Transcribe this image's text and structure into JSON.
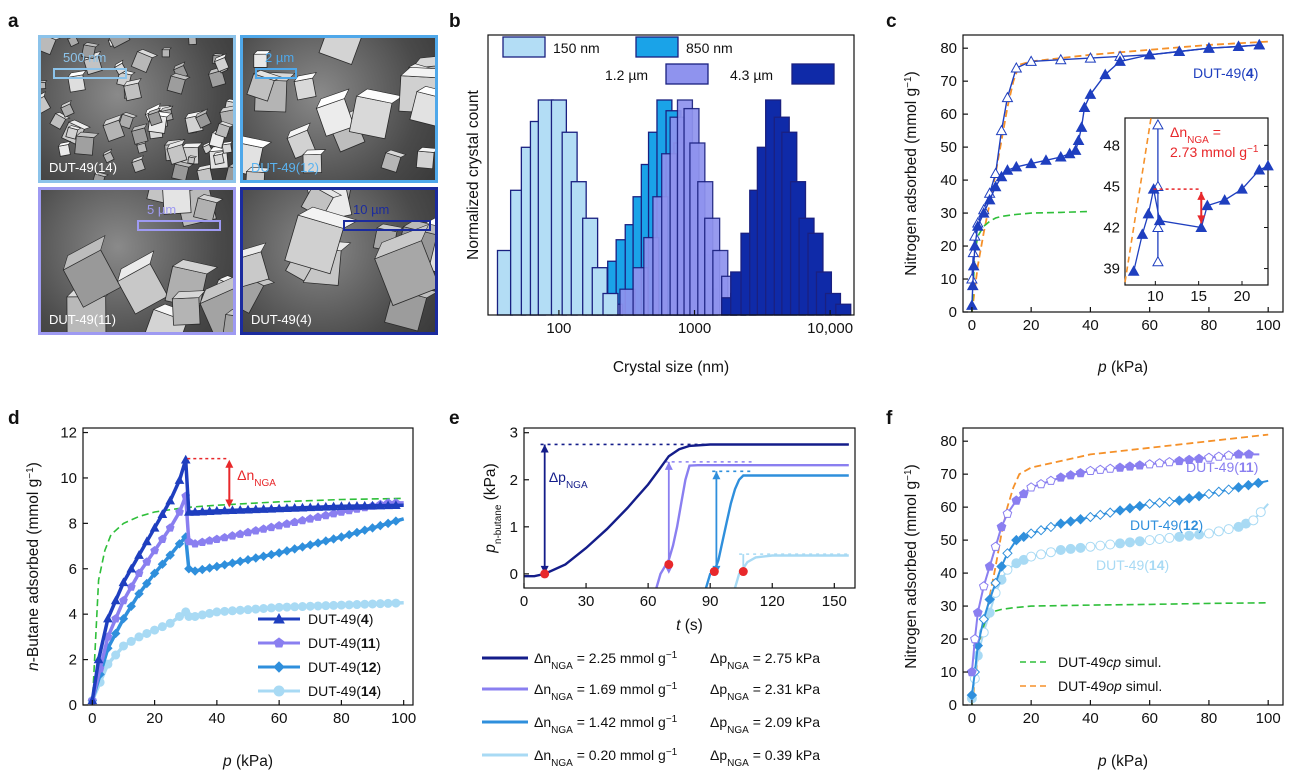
{
  "panel_labels": [
    "a",
    "b",
    "c",
    "d",
    "e",
    "f"
  ],
  "colors": {
    "s150": "#b3ddf5",
    "s850": "#1aa3e8",
    "s1200": "#8f93ee",
    "s4300": "#0f2aa8",
    "navy": "#141d8a",
    "dut4": "#1f3fbf",
    "dut11": "#8a7ff0",
    "dut12": "#2f8fdc",
    "dut14": "#a8daf4",
    "red": "#e8282b",
    "green": "#2fbf3a",
    "orange": "#f5912a",
    "edge": "#1a2080"
  },
  "panel_a": {
    "images": [
      {
        "caption": "DUT-49(14)",
        "scale": "500 nm",
        "border": "#8cc3ea",
        "capcolor": "#ffffff"
      },
      {
        "caption": "DUT-49(12)",
        "scale": "2 µm",
        "border": "#4fa8ea",
        "capcolor": "#5ab3f0"
      },
      {
        "caption": "DUT-49(11)",
        "scale": "5 µm",
        "border": "#9e9af2",
        "capcolor": "#ffffff"
      },
      {
        "caption": "DUT-49(4)",
        "scale": "10 µm",
        "border": "#1b2b9e",
        "capcolor": "#ffffff"
      }
    ]
  },
  "panel_b": {
    "ylabel": "Normalized crystal count",
    "xlabel": "Crystal size (nm)",
    "xticks": [
      "100",
      "1000",
      "10,000"
    ],
    "legend": [
      "150 nm",
      "850 nm",
      "1.2 µm",
      "4.3 µm"
    ]
  },
  "panel_c": {
    "ylabel": "Nitrogen adsorbed (mmol g",
    "ylabel_sup": "−1",
    "xlabel_var": "p",
    "xlabel_unit": " (kPa)",
    "series_label": "DUT-49(4)",
    "inset_label": "Δn",
    "inset_sub": "NGA",
    "inset_value": "2.73 mmol g",
    "inset_value_sup": "−1",
    "xticks": [
      "0",
      "20",
      "40",
      "60",
      "80",
      "100"
    ],
    "yticks": [
      "0",
      "10",
      "20",
      "30",
      "40",
      "50",
      "60",
      "70",
      "80"
    ],
    "inset_xticks": [
      "10",
      "15",
      "20"
    ],
    "inset_yticks": [
      "39",
      "42",
      "45",
      "48"
    ]
  },
  "panel_d": {
    "ylabel": "n-Butane adsorbed (mmol g",
    "ylabel_sup": "−1",
    "xlabel_var": "p",
    "xlabel_unit": " (kPa)",
    "delta_label": "Δn",
    "delta_sub": "NGA",
    "xticks": [
      "0",
      "20",
      "40",
      "60",
      "80",
      "100"
    ],
    "yticks": [
      "0",
      "2",
      "4",
      "6",
      "8",
      "10",
      "12"
    ],
    "legend": [
      "DUT-49(4)",
      "DUT-49(11)",
      "DUT-49(12)",
      "DUT-49(14)"
    ]
  },
  "panel_e": {
    "ylabel_var": "p",
    "ylabel_sub": "n-butane",
    "ylabel_unit": " (kPa)",
    "xlabel_var": "t",
    "xlabel_unit": " (s)",
    "delta_label": "Δp",
    "delta_sub": "NGA",
    "xticks": [
      "0",
      "30",
      "60",
      "90",
      "120",
      "150"
    ],
    "yticks": [
      "0",
      "1",
      "2",
      "3"
    ],
    "legend": [
      {
        "dn": "= 2.25 mmol g",
        "dp": "= 2.75 kPa"
      },
      {
        "dn": "= 1.69 mmol g",
        "dp": "= 2.31 kPa"
      },
      {
        "dn": "= 1.42 mmol g",
        "dp": "= 2.09 kPa"
      },
      {
        "dn": "= 0.20 mmol g",
        "dp": "= 0.39 kPa"
      }
    ],
    "legend_dn": "Δn",
    "legend_dp": "Δp",
    "legend_sub": "NGA",
    "legend_sup": "−1"
  },
  "panel_f": {
    "ylabel": "Nitrogen adsorbed (mmol g",
    "ylabel_sup": "−1",
    "xlabel_var": "p",
    "xlabel_unit": " (kPa)",
    "labels": [
      "DUT-49(11)",
      "DUT-49(12)",
      "DUT-49(14)"
    ],
    "legend": [
      "DUT-49cp simul.",
      "DUT-49op simul."
    ],
    "xticks": [
      "0",
      "20",
      "40",
      "60",
      "80",
      "100"
    ],
    "yticks": [
      "0",
      "10",
      "20",
      "30",
      "40",
      "50",
      "60",
      "70",
      "80"
    ]
  },
  "chart_data": [
    {
      "type": "bar",
      "panel": "b",
      "xlabel": "Crystal size (nm)",
      "ylabel": "Normalized crystal count",
      "xscale": "log",
      "series": [
        {
          "name": "150 nm",
          "x": [
            40,
            50,
            60,
            70,
            80,
            100,
            120,
            140,
            170,
            200,
            240
          ],
          "values": [
            0.3,
            0.58,
            0.78,
            0.9,
            1.0,
            1.0,
            0.85,
            0.62,
            0.45,
            0.22,
            0.1
          ]
        },
        {
          "name": "850 nm",
          "x": [
            180,
            220,
            260,
            300,
            350,
            400,
            460,
            520,
            600,
            700,
            800,
            900,
            1000,
            1150,
            1300
          ],
          "values": [
            0.08,
            0.15,
            0.25,
            0.35,
            0.42,
            0.55,
            0.7,
            0.85,
            1.0,
            0.95,
            0.8,
            0.6,
            0.45,
            0.28,
            0.12
          ]
        },
        {
          "name": "1.2 µm",
          "x": [
            260,
            320,
            400,
            480,
            560,
            650,
            750,
            850,
            950,
            1050,
            1200,
            1350,
            1550,
            1800,
            2100,
            2500
          ],
          "values": [
            0.05,
            0.12,
            0.22,
            0.36,
            0.55,
            0.75,
            0.92,
            1.0,
            0.96,
            0.8,
            0.62,
            0.45,
            0.3,
            0.18,
            0.1,
            0.05
          ]
        },
        {
          "name": "4.3 µm",
          "x": [
            1800,
            2100,
            2500,
            2900,
            3300,
            3800,
            4400,
            5000,
            5800,
            6700,
            7800,
            9000,
            10500,
            12500
          ],
          "values": [
            0.08,
            0.2,
            0.38,
            0.58,
            0.78,
            1.0,
            0.92,
            0.85,
            0.62,
            0.45,
            0.38,
            0.2,
            0.1,
            0.05
          ]
        }
      ]
    },
    {
      "type": "line",
      "panel": "c",
      "xlabel": "p (kPa)",
      "ylabel": "Nitrogen adsorbed (mmol g−1)",
      "xlim": [
        -3,
        105
      ],
      "ylim": [
        0,
        84
      ],
      "series": [
        {
          "name": "DUT-49(4)",
          "x": [
            0,
            0.3,
            0.6,
            1,
            2,
            4,
            6,
            8,
            10,
            12,
            15,
            20,
            25,
            30,
            33,
            35,
            36,
            37,
            38,
            40,
            45,
            50,
            60,
            70,
            80,
            90,
            97
          ],
          "y": [
            2,
            8,
            14,
            20,
            26,
            30,
            34,
            38,
            41,
            43,
            44,
            45,
            46,
            47,
            48,
            49,
            52,
            56,
            62,
            66,
            72,
            76,
            78,
            79,
            80,
            80.5,
            81
          ]
        },
        {
          "name": "DUT-49(4) desorption",
          "x": [
            97,
            90,
            80,
            70,
            60,
            50,
            40,
            30,
            20,
            15,
            12,
            10,
            8,
            6,
            4,
            2,
            1,
            0.5,
            0
          ],
          "y": [
            81,
            80.5,
            80,
            79,
            78,
            77.5,
            77,
            76.5,
            76,
            74,
            65,
            55,
            42,
            36,
            31,
            27,
            23,
            18,
            10
          ]
        },
        {
          "name": "DUT-49cp simul.",
          "x": [
            0,
            1,
            2,
            4,
            6,
            8,
            10,
            14,
            20,
            30,
            40
          ],
          "y": [
            0,
            18,
            23,
            26,
            27.5,
            28.5,
            29,
            29.5,
            30,
            30.2,
            30.5
          ]
        },
        {
          "name": "DUT-49op simul.",
          "x": [
            0,
            2,
            4,
            6,
            8,
            10,
            12,
            14,
            16,
            20,
            30,
            40,
            60,
            80,
            100
          ],
          "y": [
            0,
            14,
            24,
            33,
            42,
            52,
            62,
            70,
            75,
            76,
            77,
            78,
            79.5,
            81,
            82
          ]
        }
      ]
    },
    {
      "type": "line",
      "panel": "d",
      "xlabel": "p (kPa)",
      "ylabel": "n-Butane adsorbed (mmol g−1)",
      "xlim": [
        -3,
        103
      ],
      "ylim": [
        0,
        12.2
      ],
      "series": [
        {
          "name": "DUT-49(4)",
          "x": [
            0,
            2,
            5,
            10,
            15,
            20,
            25,
            28,
            30,
            31,
            33,
            40,
            60,
            80,
            100
          ],
          "y": [
            0.2,
            2.0,
            3.8,
            5.4,
            6.6,
            7.8,
            9.0,
            9.9,
            10.8,
            8.5,
            8.5,
            8.55,
            8.65,
            8.75,
            8.8
          ]
        },
        {
          "name": "DUT-49(11)",
          "x": [
            0,
            5,
            10,
            15,
            20,
            25,
            28,
            30,
            31,
            33,
            40,
            60,
            80,
            95,
            100
          ],
          "y": [
            0.2,
            3.0,
            4.6,
            5.8,
            6.8,
            7.8,
            8.5,
            9.2,
            7.2,
            7.1,
            7.3,
            7.9,
            8.5,
            8.9,
            8.9
          ]
        },
        {
          "name": "DUT-49(12)",
          "x": [
            0,
            5,
            10,
            15,
            20,
            25,
            28,
            30,
            31,
            33,
            40,
            60,
            80,
            100
          ],
          "y": [
            0.2,
            2.5,
            3.8,
            4.9,
            5.8,
            6.6,
            7.1,
            7.4,
            6.0,
            5.9,
            6.1,
            6.7,
            7.4,
            8.2
          ]
        },
        {
          "name": "DUT-49(14)",
          "x": [
            0,
            5,
            10,
            15,
            20,
            25,
            28,
            30,
            31,
            33,
            40,
            60,
            80,
            100
          ],
          "y": [
            0.2,
            1.8,
            2.6,
            3.0,
            3.3,
            3.6,
            3.9,
            4.1,
            3.9,
            3.9,
            4.1,
            4.3,
            4.4,
            4.5
          ]
        },
        {
          "name": "DUT-49cp simul.",
          "x": [
            0,
            2,
            4,
            6,
            10,
            15,
            20,
            30,
            40,
            60,
            80,
            100
          ],
          "y": [
            0,
            5.5,
            6.8,
            7.5,
            8.0,
            8.3,
            8.5,
            8.7,
            8.8,
            8.95,
            9.05,
            9.1
          ]
        }
      ]
    },
    {
      "type": "line",
      "panel": "e",
      "xlabel": "t (s)",
      "ylabel": "p n-butane (kPa)",
      "xlim": [
        0,
        160
      ],
      "ylim": [
        -0.3,
        3.1
      ],
      "series": [
        {
          "name": "2.25 mmol/g",
          "x": [
            0,
            5,
            10,
            20,
            30,
            40,
            50,
            60,
            65,
            70,
            75,
            80,
            90,
            100,
            120,
            140,
            157
          ],
          "y": [
            -0.05,
            -0.05,
            0.0,
            0.2,
            0.55,
            0.95,
            1.4,
            1.9,
            2.2,
            2.5,
            2.65,
            2.72,
            2.75,
            2.75,
            2.75,
            2.75,
            2.75
          ]
        },
        {
          "name": "1.69 mmol/g",
          "x": [
            64,
            66,
            68,
            70,
            72,
            74,
            76,
            78,
            80,
            84,
            90,
            100,
            120,
            140,
            157
          ],
          "y": [
            -0.3,
            0.0,
            0.15,
            0.3,
            0.6,
            1.0,
            1.5,
            2.0,
            2.3,
            2.31,
            2.31,
            2.31,
            2.31,
            2.31,
            2.31
          ]
        },
        {
          "name": "1.42 mmol/g",
          "x": [
            88,
            90,
            92,
            94,
            96,
            98,
            100,
            102,
            104,
            106,
            110,
            120,
            140,
            157
          ],
          "y": [
            -0.3,
            0.0,
            0.05,
            0.3,
            0.7,
            1.1,
            1.5,
            1.8,
            2.0,
            2.09,
            2.09,
            2.09,
            2.09,
            2.09
          ]
        },
        {
          "name": "0.20 mmol/g",
          "x": [
            102,
            104,
            106,
            108,
            112,
            120,
            130,
            140,
            157
          ],
          "y": [
            -0.3,
            0.0,
            0.12,
            0.25,
            0.35,
            0.39,
            0.39,
            0.39,
            0.39
          ]
        }
      ]
    },
    {
      "type": "line",
      "panel": "f",
      "xlabel": "p (kPa)",
      "ylabel": "Nitrogen adsorbed (mmol g−1)",
      "xlim": [
        -3,
        105
      ],
      "ylim": [
        0,
        84
      ],
      "series": [
        {
          "name": "DUT-49(11)",
          "x": [
            0,
            1,
            2,
            4,
            6,
            8,
            10,
            12,
            15,
            20,
            30,
            40,
            50,
            60,
            70,
            80,
            90,
            97
          ],
          "y": [
            10,
            20,
            28,
            36,
            42,
            48,
            54,
            58,
            62,
            66,
            69,
            71,
            72,
            73,
            74,
            75,
            76,
            76
          ]
        },
        {
          "name": "DUT-49(12)",
          "x": [
            0,
            1,
            2,
            4,
            6,
            8,
            10,
            12,
            15,
            20,
            30,
            40,
            50,
            60,
            70,
            80,
            90,
            100
          ],
          "y": [
            3,
            10,
            18,
            26,
            32,
            37,
            42,
            46,
            50,
            52,
            55,
            57,
            59,
            61,
            62,
            64,
            66,
            68
          ]
        },
        {
          "name": "DUT-49(14)",
          "x": [
            0,
            1,
            2,
            4,
            6,
            8,
            10,
            12,
            15,
            20,
            30,
            40,
            50,
            60,
            70,
            80,
            90,
            95,
            100
          ],
          "y": [
            2,
            8,
            15,
            22,
            28,
            34,
            38,
            41,
            43,
            45,
            47,
            48,
            49,
            50,
            51,
            52,
            54,
            56,
            61
          ]
        },
        {
          "name": "DUT-49cp simul.",
          "x": [
            0,
            2,
            4,
            6,
            8,
            10,
            14,
            20,
            40,
            60,
            80,
            100
          ],
          "y": [
            0,
            18,
            24,
            27,
            28.5,
            29,
            29.5,
            30,
            30.3,
            30.5,
            30.8,
            31
          ]
        },
        {
          "name": "DUT-49op simul.",
          "x": [
            0,
            2,
            4,
            6,
            8,
            10,
            12,
            14,
            16,
            20,
            30,
            40,
            60,
            80,
            100
          ],
          "y": [
            0,
            14,
            24,
            33,
            42,
            52,
            60,
            66,
            70,
            72,
            74,
            76,
            78,
            80,
            82
          ]
        }
      ]
    }
  ]
}
